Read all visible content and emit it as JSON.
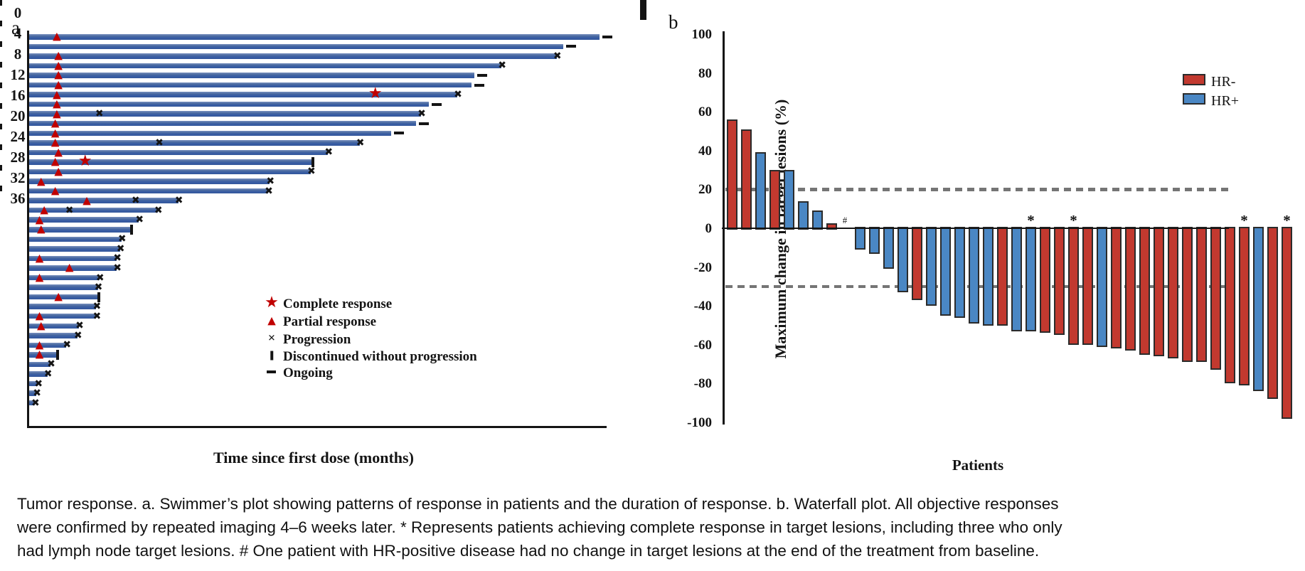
{
  "figure": {
    "panel_a_letter": "a",
    "panel_b_letter": "b",
    "caption": "Tumor response. a. Swimmer’s plot showing patterns of response in patients and the duration of response. b. Waterfall plot. All objective responses were confirmed by repeated imaging 4–6 weeks later. * Represents patients achieving complete response in target lesions, including three who only had lymph node target lesions. # One patient with HR-positive disease had no change in target lesions at the end of the treatment from baseline."
  },
  "chart_data": [
    {
      "id": "swimmer",
      "type": "bar",
      "orientation": "horizontal",
      "panel": "a",
      "xlabel": "Time since first dose (months)",
      "xlim": [
        0,
        37
      ],
      "xticks": [
        0,
        4,
        8,
        12,
        16,
        20,
        24,
        28,
        32,
        36
      ],
      "grid": false,
      "bar_color": "#3A5EA5",
      "marker_red": "#C00000",
      "marker_black": "#141414",
      "legend_position": "lower-right-inside",
      "legend": [
        {
          "marker": "star",
          "label": "Complete response"
        },
        {
          "marker": "triangle",
          "label": "Partial response"
        },
        {
          "marker": "cross",
          "label": "Progression"
        },
        {
          "marker": "vbar",
          "label": "Discontinued without progression"
        },
        {
          "marker": "dash",
          "label": "Ongoing"
        }
      ],
      "patients": [
        {
          "d": 36.2,
          "pr": 1.8,
          "end": "ongoing"
        },
        {
          "d": 33.9,
          "end": "ongoing"
        },
        {
          "d": 33.5,
          "pr": 1.9,
          "end": "progression"
        },
        {
          "d": 30.0,
          "pr": 1.9,
          "end": "progression"
        },
        {
          "d": 28.3,
          "pr": 1.9,
          "end": "ongoing"
        },
        {
          "d": 28.1,
          "pr": 1.9,
          "end": "ongoing"
        },
        {
          "d": 27.2,
          "pr": 1.8,
          "cr": 22.0,
          "end": "progression"
        },
        {
          "d": 25.4,
          "pr": 1.8,
          "end": "ongoing"
        },
        {
          "d": 24.9,
          "pr": 1.8,
          "px": [
            4.5
          ],
          "end": "progression"
        },
        {
          "d": 24.6,
          "pr": 1.7,
          "end": "ongoing"
        },
        {
          "d": 23.0,
          "pr": 1.7,
          "end": "ongoing"
        },
        {
          "d": 21.0,
          "pr": 1.7,
          "px": [
            8.3
          ],
          "end": "progression"
        },
        {
          "d": 19.0,
          "pr": 1.9,
          "end": "progression"
        },
        {
          "d": 18.0,
          "pr": 1.7,
          "cr": 3.6,
          "end": "discontinued"
        },
        {
          "d": 17.9,
          "pr": 1.9,
          "end": "progression"
        },
        {
          "d": 15.3,
          "pr": 0.8,
          "end": "progression"
        },
        {
          "d": 15.2,
          "pr": 1.7,
          "end": "progression"
        },
        {
          "d": 9.5,
          "pr": 3.7,
          "px": [
            6.8
          ],
          "end": "progression"
        },
        {
          "d": 8.2,
          "pr": 1.0,
          "px": [
            2.6
          ],
          "end": "progression"
        },
        {
          "d": 7.0,
          "pr": 0.7,
          "end": "progression"
        },
        {
          "d": 6.5,
          "pr": 0.8,
          "end": "discontinued"
        },
        {
          "d": 5.9,
          "end": "progression"
        },
        {
          "d": 5.8,
          "end": "progression"
        },
        {
          "d": 5.6,
          "pr": 0.7,
          "end": "progression"
        },
        {
          "d": 5.6,
          "pr": 2.6,
          "end": "progression"
        },
        {
          "d": 4.5,
          "pr": 0.7,
          "end": "progression"
        },
        {
          "d": 4.4,
          "end": "progression"
        },
        {
          "d": 4.4,
          "pr": 1.9,
          "end": "discontinued"
        },
        {
          "d": 4.3,
          "end": "progression"
        },
        {
          "d": 4.3,
          "pr": 0.7,
          "end": "progression"
        },
        {
          "d": 3.2,
          "pr": 0.8,
          "end": "progression"
        },
        {
          "d": 3.1,
          "end": "progression"
        },
        {
          "d": 2.4,
          "pr": 0.7,
          "end": "progression"
        },
        {
          "d": 1.8,
          "pr": 0.7,
          "end": "discontinued"
        },
        {
          "d": 1.4,
          "end": "progression"
        },
        {
          "d": 1.2,
          "end": "progression"
        },
        {
          "d": 0.6,
          "end": "progression"
        },
        {
          "d": 0.5,
          "end": "progression"
        },
        {
          "d": 0.4,
          "end": "progression"
        }
      ]
    },
    {
      "id": "waterfall",
      "type": "bar",
      "orientation": "vertical",
      "panel": "b",
      "ylabel": "Maximum change in target lesions (%)",
      "xlabel": "Patients",
      "ylim": [
        -100,
        100
      ],
      "yticks": [
        100,
        80,
        60,
        40,
        20,
        0,
        -20,
        -40,
        -60,
        -80,
        -100
      ],
      "reference_lines": [
        20,
        -30
      ],
      "reference_line_color": "#757575",
      "grid": false,
      "colors": {
        "HR-": "#C2392F",
        "HR+": "#4A87C4"
      },
      "legend": [
        {
          "label": "HR-",
          "color": "#C2392F"
        },
        {
          "label": "HR+",
          "color": "#4A87C4"
        }
      ],
      "bars": [
        {
          "v": 56,
          "g": "HR-"
        },
        {
          "v": 51,
          "g": "HR-"
        },
        {
          "v": 39,
          "g": "HR+"
        },
        {
          "v": 30,
          "g": "HR-"
        },
        {
          "v": 30,
          "g": "HR+"
        },
        {
          "v": 14,
          "g": "HR+"
        },
        {
          "v": 9,
          "g": "HR+"
        },
        {
          "v": 2.5,
          "g": "HR-"
        },
        {
          "v": 0,
          "g": "HR+",
          "a": "#"
        },
        {
          "v": -11,
          "g": "HR+"
        },
        {
          "v": -13,
          "g": "HR+"
        },
        {
          "v": -21,
          "g": "HR+"
        },
        {
          "v": -33,
          "g": "HR+"
        },
        {
          "v": -37,
          "g": "HR-"
        },
        {
          "v": -40,
          "g": "HR+"
        },
        {
          "v": -45,
          "g": "HR+"
        },
        {
          "v": -46,
          "g": "HR+"
        },
        {
          "v": -49,
          "g": "HR+"
        },
        {
          "v": -50,
          "g": "HR+"
        },
        {
          "v": -50,
          "g": "HR-"
        },
        {
          "v": -53,
          "g": "HR+"
        },
        {
          "v": -53,
          "g": "HR+",
          "a": "*"
        },
        {
          "v": -54,
          "g": "HR-"
        },
        {
          "v": -55,
          "g": "HR-"
        },
        {
          "v": -60,
          "g": "HR-",
          "a": "*"
        },
        {
          "v": -60,
          "g": "HR-"
        },
        {
          "v": -61,
          "g": "HR+"
        },
        {
          "v": -62,
          "g": "HR-"
        },
        {
          "v": -63,
          "g": "HR-"
        },
        {
          "v": -65,
          "g": "HR-"
        },
        {
          "v": -66,
          "g": "HR-"
        },
        {
          "v": -67,
          "g": "HR-"
        },
        {
          "v": -69,
          "g": "HR-"
        },
        {
          "v": -69,
          "g": "HR-"
        },
        {
          "v": -73,
          "g": "HR-"
        },
        {
          "v": -80,
          "g": "HR-"
        },
        {
          "v": -81,
          "g": "HR-",
          "a": "*"
        },
        {
          "v": -84,
          "g": "HR+"
        },
        {
          "v": -88,
          "g": "HR-"
        },
        {
          "v": -98,
          "g": "HR-",
          "a": "*"
        }
      ]
    }
  ]
}
